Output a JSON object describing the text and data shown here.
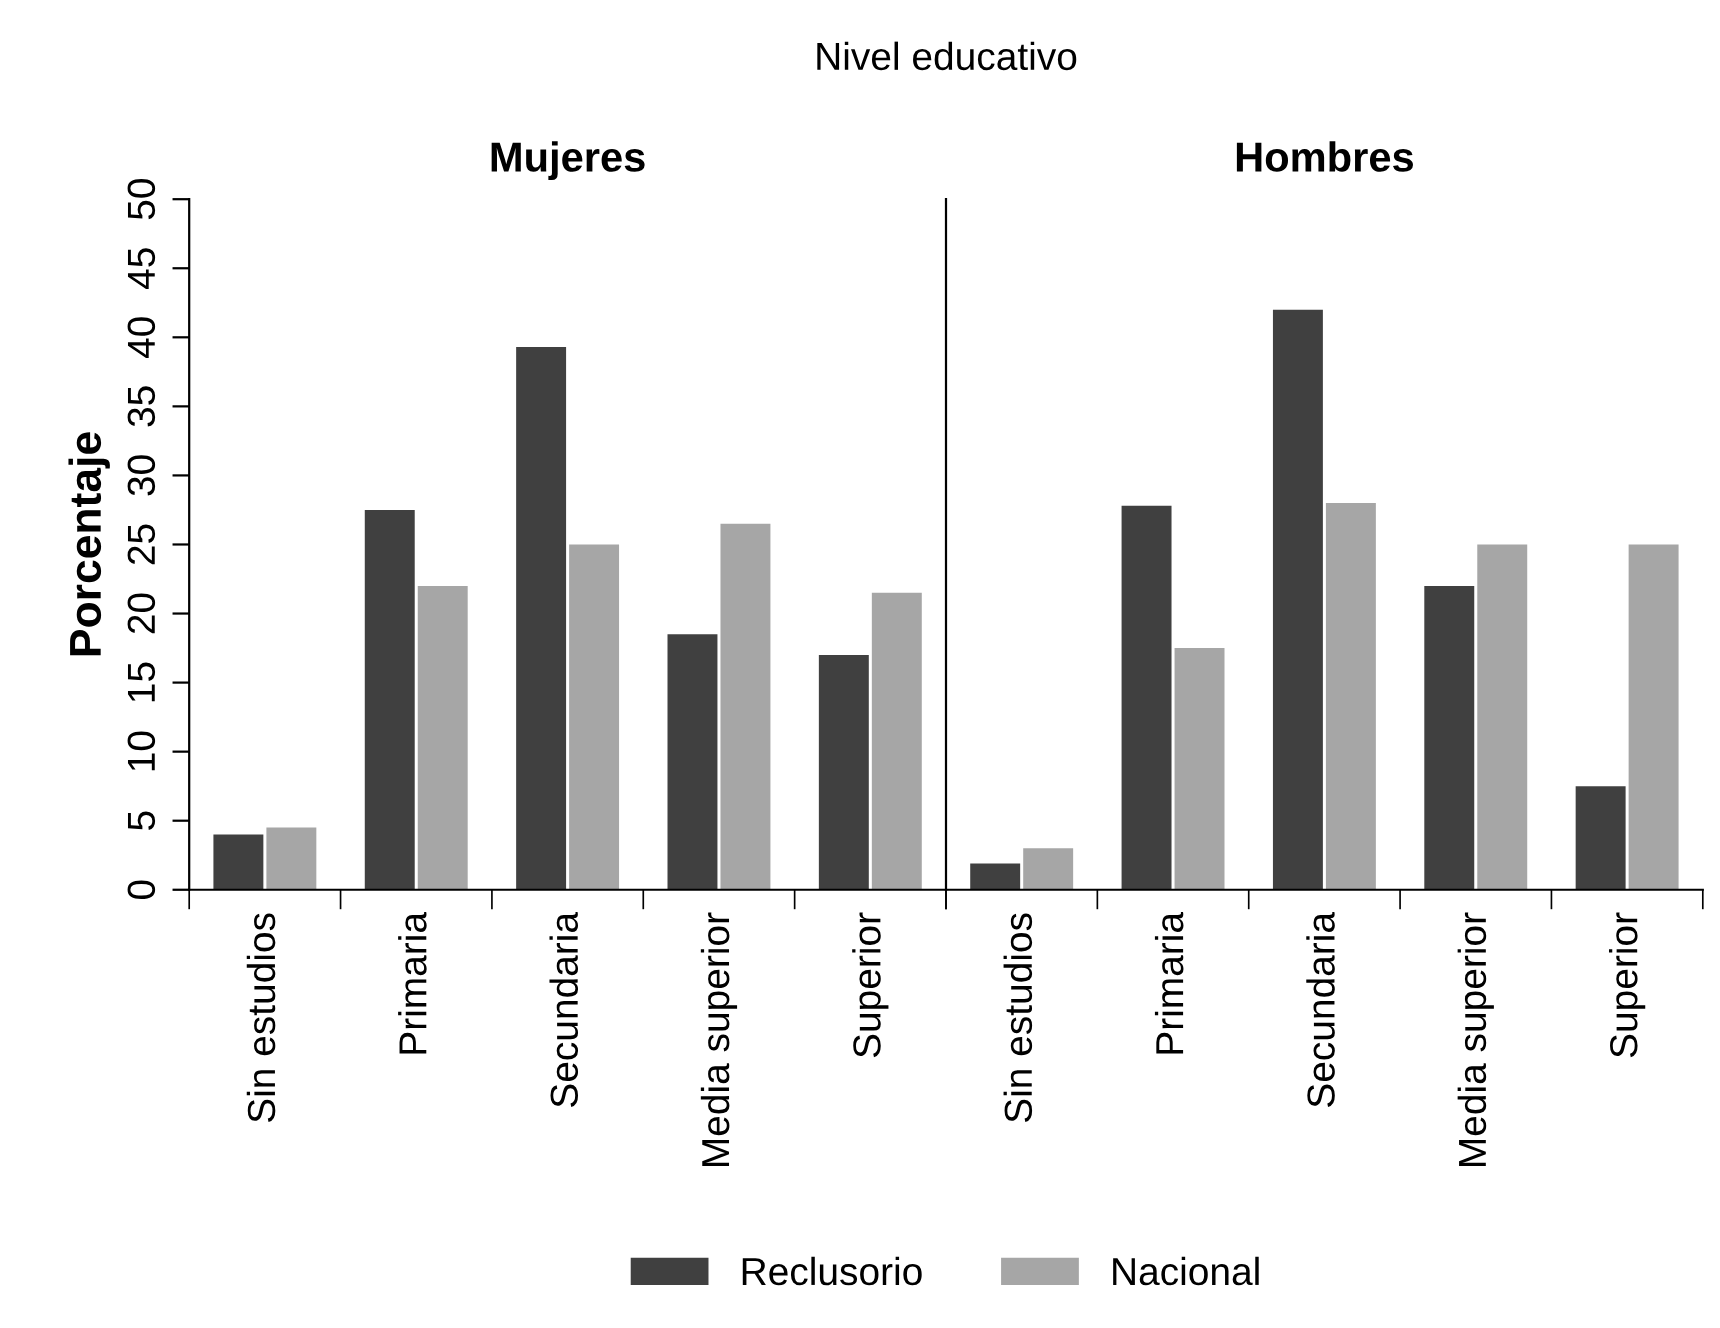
{
  "chart_data": [
    {
      "type": "bar",
      "subtitle": "Nivel educativo",
      "title": "Mujeres",
      "ylabel": "Porcentaje",
      "categories": [
        "Sin estudios",
        "Primaria",
        "Secundaria",
        "Media superior",
        "Superior"
      ],
      "series": [
        {
          "name": "Reclusorio",
          "color": "#404040",
          "values": [
            4,
            27.5,
            39.3,
            18.5,
            17
          ]
        },
        {
          "name": "Nacional",
          "color": "#a6a6a6",
          "values": [
            4.5,
            22,
            25,
            26.5,
            21.5
          ]
        }
      ],
      "ylim": [
        0,
        50
      ],
      "yticks": [
        0,
        5,
        10,
        15,
        20,
        25,
        30,
        35,
        40,
        45,
        50
      ],
      "legend": "bottom"
    },
    {
      "type": "bar",
      "title": "Hombres",
      "categories": [
        "Sin estudios",
        "Primaria",
        "Secundaria",
        "Media superior",
        "Superior"
      ],
      "series": [
        {
          "name": "Reclusorio",
          "color": "#404040",
          "values": [
            1.9,
            27.8,
            42,
            22,
            7.5
          ]
        },
        {
          "name": "Nacional",
          "color": "#a6a6a6",
          "values": [
            3,
            17.5,
            28,
            25,
            25
          ]
        }
      ],
      "ylim": [
        0,
        50
      ],
      "tick_labels": "x"
    }
  ]
}
